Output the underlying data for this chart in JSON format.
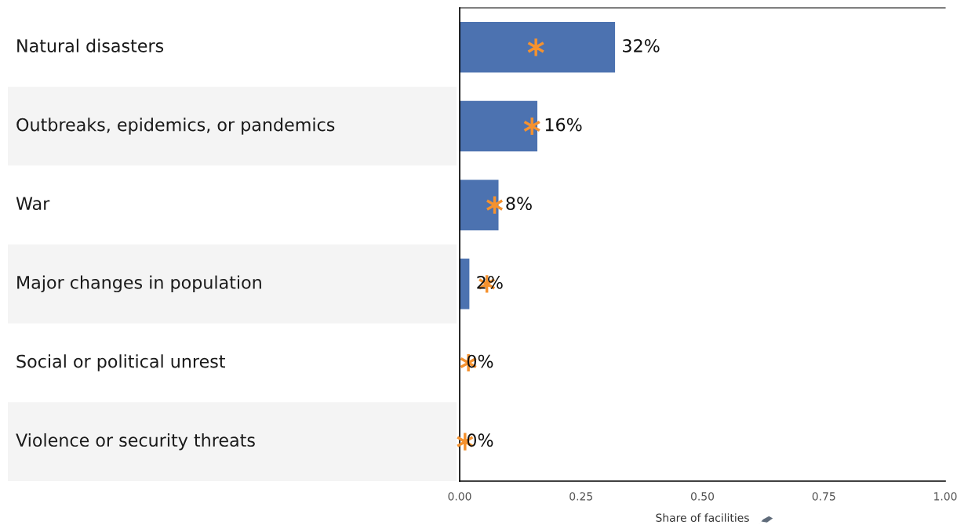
{
  "chart_data": {
    "type": "bar",
    "orientation": "horizontal",
    "xlabel": "Share of facilities",
    "categories": [
      "Natural disasters",
      "Outbreaks, epidemics, or pandemics",
      "War",
      "Major changes in population",
      "Social or political unrest",
      "Violence or security threats"
    ],
    "series": [
      {
        "type": "bar",
        "color": "#4c72b0",
        "values": [
          0.32,
          0.16,
          0.08,
          0.02,
          0,
          0
        ],
        "value_labels": [
          "32%",
          "16%",
          "8%",
          "2%",
          "0%",
          "0%"
        ]
      },
      {
        "type": "scatter",
        "color": "#f5922f",
        "marker": "cross",
        "values": [
          0.157,
          0.149,
          0.072,
          0.056,
          0.018,
          0.011
        ]
      }
    ],
    "xlim": [
      0,
      1
    ],
    "xticks": [
      {
        "value": 0,
        "label": "0.00"
      },
      {
        "value": 0.25,
        "label": "0.25"
      },
      {
        "value": 0.5,
        "label": "0.50"
      },
      {
        "value": 0.75,
        "label": "0.75"
      },
      {
        "value": 1,
        "label": "1.00"
      }
    ],
    "grid": false,
    "legend": false
  }
}
